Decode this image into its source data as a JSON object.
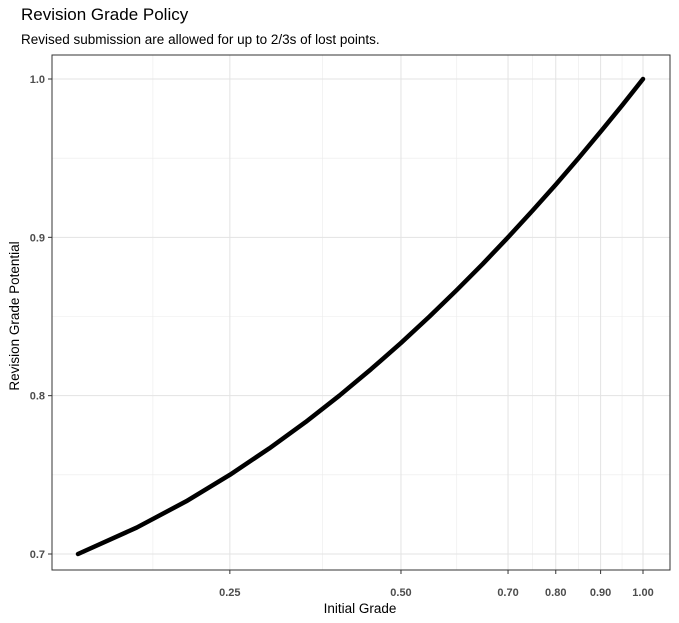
{
  "chart_data": {
    "type": "line",
    "title": "Revision Grade Policy",
    "subtitle": "Revised submission are allowed for up to 2/3s of lost points.",
    "xlabel": "Initial Grade",
    "ylabel": "Revision Grade Potential",
    "x_scale": "sqrt",
    "xlim": [
      0.1,
      1.0
    ],
    "ylim": [
      0.7,
      1.0
    ],
    "x_ticks": [
      0.25,
      0.5,
      0.7,
      0.8,
      0.9,
      1.0
    ],
    "x_tick_labels": [
      "0.25",
      "0.50",
      "0.70",
      "0.80",
      "0.90",
      "1.00"
    ],
    "y_ticks": [
      0.7,
      0.8,
      0.9,
      1.0
    ],
    "y_tick_labels": [
      "0.7",
      "0.8",
      "0.9",
      "1.0"
    ],
    "grid": true,
    "series": [
      {
        "x": [
          0.1,
          0.15,
          0.2,
          0.25,
          0.3,
          0.35,
          0.4,
          0.45,
          0.5,
          0.55,
          0.6,
          0.65,
          0.7,
          0.75,
          0.8,
          0.85,
          0.9,
          0.95,
          1.0
        ],
        "y": [
          0.7,
          0.7167,
          0.7333,
          0.75,
          0.7667,
          0.7833,
          0.8,
          0.8167,
          0.8333,
          0.85,
          0.8667,
          0.8833,
          0.9,
          0.9167,
          0.9333,
          0.95,
          0.9667,
          0.9833,
          1.0
        ],
        "color": "#000000"
      }
    ]
  }
}
